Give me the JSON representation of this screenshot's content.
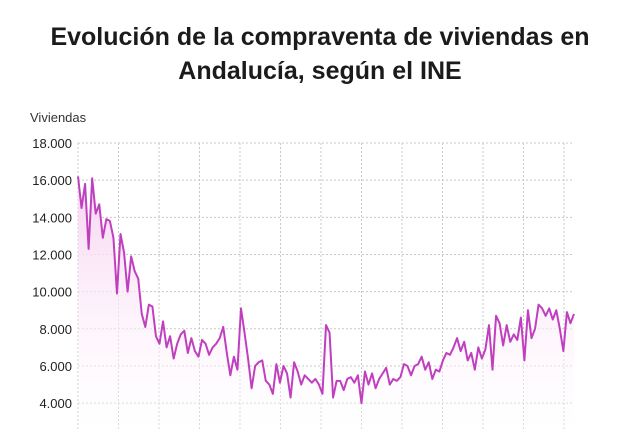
{
  "title_lines": [
    "Evolución de la compraventa de viviendas en",
    "Andalucía, según el INE"
  ],
  "colors": {
    "line": "#c03fbf",
    "area_top": "#f7d3f2",
    "grid": "#c8c8c8",
    "text": "#222222"
  },
  "chart_data": {
    "type": "area",
    "title": "Evolución de la compraventa de viviendas en Andalucía, según el INE",
    "ylabel": "Viviendas",
    "xlabel": "",
    "ylim": [
      2500,
      18000
    ],
    "yticks": [
      4000,
      6000,
      8000,
      10000,
      12000,
      14000,
      16000,
      18000
    ],
    "ytick_labels": [
      "4.000",
      "6.000",
      "8.000",
      "10.000",
      "12.000",
      "14.000",
      "16.000",
      "18.000"
    ],
    "grid": true,
    "legend": "none",
    "series": [
      {
        "values": [
          16200,
          14500,
          15800,
          12300,
          16100,
          14200,
          14700,
          12900,
          13900,
          13800,
          12900,
          9900,
          13100,
          12100,
          10000,
          11900,
          11100,
          10700,
          8800,
          8100,
          9300,
          9200,
          7600,
          7200,
          8400,
          7000,
          7600,
          6400,
          7200,
          7700,
          7900,
          6700,
          7500,
          6800,
          6500,
          7400,
          7200,
          6600,
          7000,
          7200,
          7500,
          8100,
          6700,
          5500,
          6500,
          5800,
          9100,
          7800,
          6400,
          4800,
          6000,
          6200,
          6300,
          5200,
          5000,
          4500,
          6100,
          5100,
          6000,
          5600,
          4300,
          6200,
          5700,
          5000,
          5500,
          5300,
          5100,
          5300,
          5000,
          4500,
          8200,
          7800,
          4300,
          5200,
          5200,
          4700,
          5300,
          5400,
          5100,
          5500,
          4000,
          5700,
          5000,
          5600,
          4800,
          5300,
          5600,
          5900,
          5000,
          5300,
          5200,
          5400,
          6100,
          6000,
          5500,
          6000,
          6100,
          6500,
          5800,
          6200,
          5300,
          5800,
          5700,
          6300,
          6700,
          6600,
          7000,
          7500,
          6800,
          7300,
          6300,
          6700,
          5800,
          7000,
          6400,
          6900,
          8200,
          5800,
          8700,
          8300,
          7100,
          8200,
          7300,
          7700,
          7400,
          8600,
          6300,
          9000,
          7500,
          8000,
          9300,
          9100,
          8700,
          9100,
          8500,
          9000,
          8000,
          6800,
          8900,
          8300,
          8800
        ]
      }
    ]
  }
}
